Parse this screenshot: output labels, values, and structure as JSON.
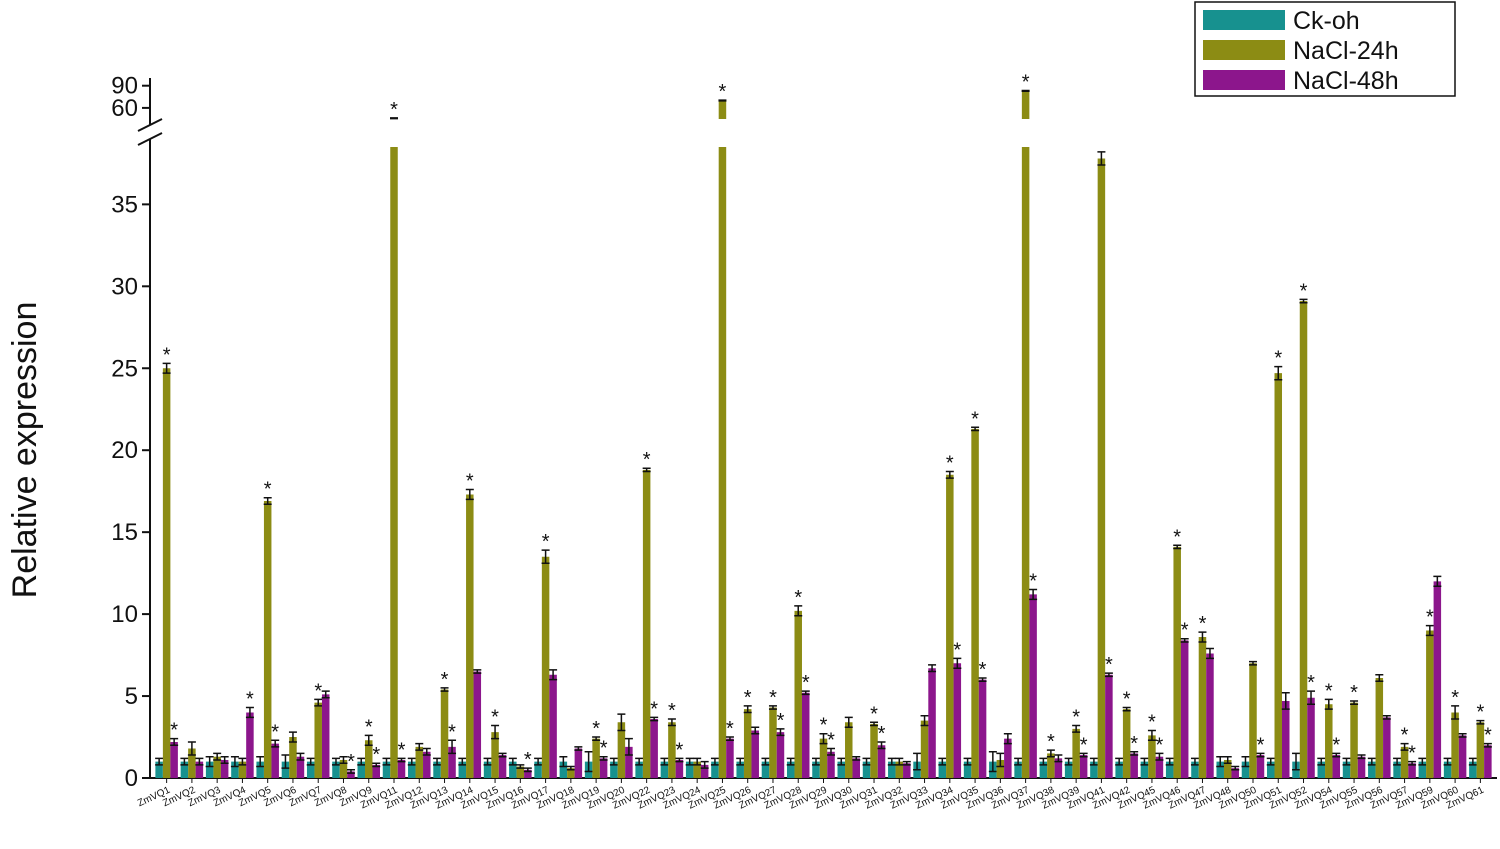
{
  "chart_data": {
    "type": "bar",
    "y_label": "Relative expression",
    "categories": [
      "ZmVQ1",
      "ZmVQ2",
      "ZmVQ3",
      "ZmVQ4",
      "ZmVQ5",
      "ZmVQ6",
      "ZmVQ7",
      "ZmVQ8",
      "ZmVQ9",
      "ZmVQ11",
      "ZmVQ12",
      "ZmVQ13",
      "ZmVQ14",
      "ZmVQ15",
      "ZmVQ16",
      "ZmVQ17",
      "ZmVQ18",
      "ZmVQ19",
      "ZmVQ20",
      "ZmVQ22",
      "ZmVQ23",
      "ZmVQ24",
      "ZmVQ25",
      "ZmVQ26",
      "ZmVQ27",
      "ZmVQ28",
      "ZmVQ29",
      "ZmVQ30",
      "ZmVQ31",
      "ZmVQ32",
      "ZmVQ33",
      "ZmVQ34",
      "ZmVQ35",
      "ZmVQ36",
      "ZmVQ37",
      "ZmVQ38",
      "ZmVQ39",
      "ZmVQ41",
      "ZmVQ42",
      "ZmVQ45",
      "ZmVQ46",
      "ZmVQ47",
      "ZmVQ48",
      "ZmVQ50",
      "ZmVQ51",
      "ZmVQ52",
      "ZmVQ54",
      "ZmVQ55",
      "ZmVQ56",
      "ZmVQ57",
      "ZmVQ59",
      "ZmVQ60",
      "ZmVQ61"
    ],
    "series": [
      {
        "name": "Ck-oh",
        "color": "#17918f",
        "values": [
          1,
          1,
          1,
          1,
          1,
          1,
          1,
          1,
          1,
          1,
          1,
          1,
          1,
          1,
          1,
          1,
          1,
          1,
          1,
          1,
          1,
          1,
          1,
          1,
          1,
          1,
          1,
          1,
          1,
          1,
          1,
          1,
          1,
          1,
          1,
          1,
          1,
          1,
          1,
          1,
          1,
          1,
          1,
          1,
          1,
          1,
          1,
          1,
          1,
          1,
          1,
          1,
          1
        ],
        "errors": [
          0.2,
          0.2,
          0.3,
          0.3,
          0.3,
          0.4,
          0.2,
          0.2,
          0.2,
          0.2,
          0.2,
          0.2,
          0.2,
          0.2,
          0.2,
          0.2,
          0.3,
          0.6,
          0.2,
          0.2,
          0.2,
          0.2,
          0.2,
          0.2,
          0.2,
          0.2,
          0.2,
          0.2,
          0.2,
          0.2,
          0.5,
          0.2,
          0.2,
          0.6,
          0.2,
          0.2,
          0.2,
          0.2,
          0.2,
          0.2,
          0.2,
          0.2,
          0.3,
          0.3,
          0.2,
          0.5,
          0.2,
          0.2,
          0.2,
          0.2,
          0.2,
          0.2,
          0.2
        ],
        "labels": [
          null,
          null,
          null,
          null,
          null,
          null,
          null,
          null,
          null,
          null,
          null,
          null,
          null,
          null,
          null,
          null,
          null,
          null,
          null,
          null,
          null,
          null,
          null,
          null,
          null,
          null,
          null,
          null,
          null,
          null,
          null,
          null,
          null,
          null,
          null,
          null,
          null,
          null,
          null,
          null,
          null,
          null,
          null,
          null,
          null,
          null,
          null,
          null,
          null,
          null,
          null,
          null,
          null
        ]
      },
      {
        "name": "NaCl-24h",
        "color": "#8c8c14",
        "values": [
          25,
          1.8,
          1.3,
          1.0,
          16.9,
          2.5,
          4.6,
          1.1,
          2.3,
          46,
          1.9,
          5.4,
          17.3,
          2.8,
          0.7,
          13.5,
          0.6,
          2.4,
          3.4,
          18.8,
          3.4,
          1.0,
          70,
          4.2,
          4.3,
          10.2,
          2.4,
          3.4,
          3.3,
          1.0,
          3.5,
          18.5,
          21.3,
          1.1,
          83,
          1.5,
          3.0,
          37.8,
          4.2,
          2.6,
          14.1,
          8.6,
          1.1,
          7.0,
          24.7,
          29.1,
          4.5,
          4.6,
          6.1,
          1.9,
          9.0,
          4.0,
          3.4
        ],
        "errors": [
          0.3,
          0.4,
          0.2,
          0.2,
          0.2,
          0.3,
          0.2,
          0.2,
          0.3,
          0.5,
          0.2,
          0.1,
          0.3,
          0.4,
          0.1,
          0.4,
          0.1,
          0.1,
          0.5,
          0.1,
          0.2,
          0.2,
          0.5,
          0.2,
          0.1,
          0.3,
          0.3,
          0.3,
          0.1,
          0.2,
          0.3,
          0.2,
          0.1,
          0.4,
          0.5,
          0.2,
          0.2,
          0.4,
          0.1,
          0.3,
          0.1,
          0.3,
          0.2,
          0.1,
          0.4,
          0.1,
          0.3,
          0.1,
          0.2,
          0.2,
          0.3,
          0.4,
          0.1
        ],
        "labels": [
          "*",
          null,
          null,
          null,
          "*",
          null,
          "*",
          null,
          "*",
          "*",
          null,
          "*",
          "*",
          "*",
          null,
          "*",
          null,
          "*",
          null,
          "*",
          "*",
          null,
          "*",
          "*",
          "*",
          "*",
          "*",
          null,
          "*",
          null,
          null,
          "*",
          "*",
          null,
          "*",
          "*",
          "*",
          null,
          "*",
          "*",
          "*",
          "*",
          null,
          null,
          "*",
          "*",
          "*",
          "*",
          null,
          "*",
          "*",
          "*",
          "*"
        ]
      },
      {
        "name": "NaCl-48h",
        "color": "#8c168c",
        "values": [
          2.2,
          1.0,
          1.1,
          4.0,
          2.1,
          1.3,
          5.1,
          0.4,
          0.8,
          1.1,
          1.6,
          1.9,
          6.5,
          1.4,
          0.5,
          6.3,
          1.8,
          1.2,
          1.9,
          3.6,
          1.1,
          0.8,
          2.4,
          2.9,
          2.8,
          5.2,
          1.6,
          1.2,
          2.0,
          0.9,
          6.7,
          7.0,
          6.0,
          2.4,
          11.2,
          1.2,
          1.4,
          6.3,
          1.5,
          1.3,
          8.4,
          7.6,
          0.6,
          1.4,
          4.7,
          4.9,
          1.4,
          1.3,
          3.7,
          0.9,
          12.0,
          2.6,
          2.0
        ],
        "errors": [
          0.2,
          0.2,
          0.2,
          0.3,
          0.2,
          0.2,
          0.2,
          0.1,
          0.1,
          0.1,
          0.2,
          0.4,
          0.1,
          0.1,
          0.1,
          0.3,
          0.1,
          0.1,
          0.5,
          0.1,
          0.1,
          0.2,
          0.1,
          0.2,
          0.2,
          0.1,
          0.2,
          0.1,
          0.2,
          0.1,
          0.2,
          0.3,
          0.1,
          0.3,
          0.3,
          0.2,
          0.1,
          0.1,
          0.1,
          0.2,
          0.1,
          0.3,
          0.1,
          0.1,
          0.5,
          0.4,
          0.1,
          0.1,
          0.1,
          0.1,
          0.3,
          0.1,
          0.1
        ],
        "labels": [
          "*",
          null,
          null,
          "*",
          "*",
          null,
          null,
          "*",
          "*",
          "*",
          null,
          "*",
          null,
          null,
          "*",
          null,
          null,
          "*",
          null,
          "*",
          "*",
          null,
          "*",
          null,
          "*",
          "*",
          "*",
          null,
          "*",
          null,
          null,
          "*",
          "*",
          null,
          "*",
          null,
          "*",
          "*",
          "*",
          "*",
          "*",
          null,
          null,
          "*",
          null,
          "*",
          "*",
          null,
          null,
          "*",
          null,
          null,
          "*"
        ]
      }
    ],
    "ylim": [
      0,
      38.5
    ],
    "yticks": [
      0,
      5,
      10,
      15,
      20,
      25,
      30,
      35
    ],
    "ylim_upper": [
      45,
      95
    ],
    "yticks_upper": [
      60,
      90
    ],
    "axis_break": true,
    "legend": "top-right"
  }
}
